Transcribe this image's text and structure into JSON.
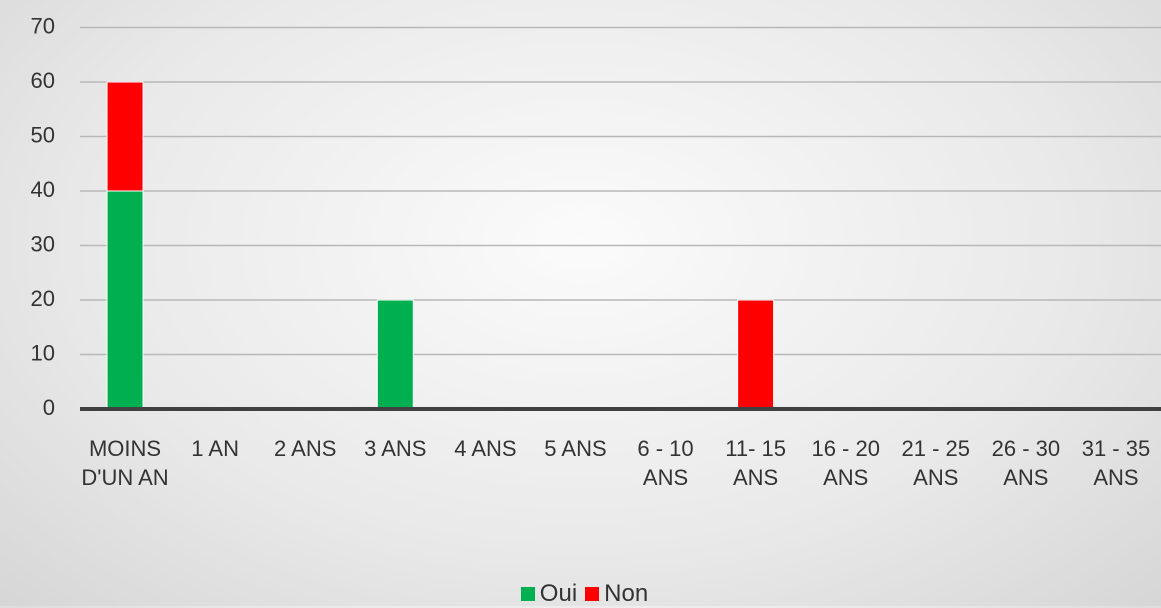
{
  "chart_data": {
    "type": "stacked_bar",
    "categories": [
      "MOINS D'UN AN",
      "1 AN",
      "2 ANS",
      "3 ANS",
      "4 ANS",
      "5 ANS",
      "6 - 10 ANS",
      "11- 15 ANS",
      "16 - 20 ANS",
      "21 - 25 ANS",
      "26 - 30 ANS",
      "31 - 35 ANS"
    ],
    "series": [
      {
        "name": "Oui",
        "color": "#00b050",
        "values": [
          40,
          0,
          0,
          20,
          0,
          0,
          0,
          0,
          0,
          0,
          0,
          0
        ]
      },
      {
        "name": "Non",
        "color": "#ff0000",
        "values": [
          20,
          0,
          0,
          0,
          0,
          0,
          0,
          20,
          0,
          0,
          0,
          0
        ]
      }
    ],
    "ylim": [
      0,
      70
    ],
    "yticks": [
      0,
      10,
      20,
      30,
      40,
      50,
      60,
      70
    ],
    "grid": true,
    "legend": "bottom"
  }
}
